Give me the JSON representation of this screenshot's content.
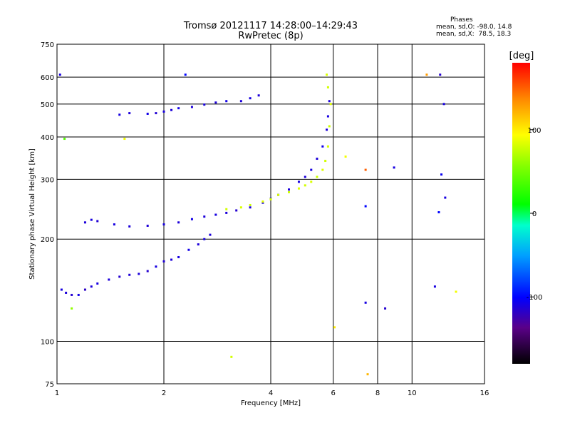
{
  "header": {
    "title": "Tromsø 20121117 14:28:00–14:29:43",
    "subtitle": "RwPretec (8p)",
    "stats_heading": "Phases",
    "stats_o": "mean, sd,O: -98.0, 14.8",
    "stats_x": "mean, sd,X:  78.5, 18.3"
  },
  "chart_data": {
    "type": "scatter",
    "title": "Tromsø 20121117 14:28:00–14:29:43",
    "subtitle": "RwPretec (8p)",
    "xlabel": "Frequency [MHz]",
    "ylabel": "Stationary phase Virtual Height [km]",
    "xscale": "log",
    "yscale": "log",
    "xlim": [
      1,
      16
    ],
    "ylim": [
      75,
      750
    ],
    "xticks": [
      1,
      2,
      4,
      6,
      8,
      10,
      16
    ],
    "xgrid": [
      2,
      4,
      6,
      8,
      10
    ],
    "yticks": [
      75,
      100,
      200,
      300,
      400,
      500,
      600,
      750
    ],
    "ygrid": [
      100,
      200,
      300,
      400,
      500,
      600
    ],
    "colorbar": {
      "label": "[deg]",
      "range": [
        -180,
        180
      ],
      "ticks": [
        100,
        0,
        -100
      ],
      "colormap": "rainbow"
    },
    "series": [
      {
        "values": [
          [
            1.03,
            142,
            -110
          ],
          [
            1.06,
            139,
            -112
          ],
          [
            1.1,
            137,
            -115
          ],
          [
            1.15,
            137,
            -108
          ],
          [
            1.2,
            142,
            -118
          ],
          [
            1.25,
            145,
            -112
          ],
          [
            1.3,
            148,
            -110
          ],
          [
            1.4,
            152,
            -112
          ],
          [
            1.5,
            155,
            -115
          ],
          [
            1.6,
            157,
            -113
          ],
          [
            1.7,
            158,
            -112
          ],
          [
            1.8,
            161,
            -115
          ],
          [
            1.9,
            166,
            -110
          ],
          [
            2.0,
            172,
            -113
          ],
          [
            2.1,
            174,
            -112
          ],
          [
            2.2,
            177,
            -110
          ],
          [
            2.35,
            186,
            -108
          ],
          [
            2.5,
            193,
            -112
          ],
          [
            2.6,
            200,
            -110
          ],
          [
            2.7,
            206,
            -112
          ]
        ]
      },
      {
        "values": [
          [
            1.2,
            224,
            -112
          ],
          [
            1.25,
            228,
            -110
          ],
          [
            1.3,
            226,
            -114
          ],
          [
            1.45,
            221,
            -110
          ],
          [
            1.6,
            218,
            -112
          ],
          [
            1.8,
            219,
            -113
          ],
          [
            2.0,
            221,
            -110
          ],
          [
            2.2,
            224,
            -112
          ],
          [
            2.4,
            229,
            -108
          ],
          [
            2.6,
            233,
            -112
          ],
          [
            2.8,
            236,
            -110
          ],
          [
            3.0,
            239,
            -112
          ],
          [
            3.2,
            243,
            -115
          ],
          [
            3.5,
            248,
            -112
          ],
          [
            3.8,
            256,
            -110
          ],
          [
            4.0,
            263,
            -112
          ],
          [
            4.2,
            270,
            -108
          ],
          [
            4.5,
            280,
            -112
          ],
          [
            4.8,
            295,
            -110
          ],
          [
            5.0,
            305,
            -112
          ],
          [
            5.2,
            320,
            -110
          ],
          [
            5.4,
            345,
            -112
          ],
          [
            5.6,
            375,
            -108
          ],
          [
            5.75,
            420,
            -112
          ],
          [
            5.8,
            460,
            -110
          ],
          [
            5.85,
            510,
            -112
          ]
        ]
      },
      {
        "values": [
          [
            3.0,
            245,
            80
          ],
          [
            3.3,
            248,
            82
          ],
          [
            3.5,
            252,
            78
          ],
          [
            3.8,
            258,
            85
          ],
          [
            4.0,
            262,
            80
          ],
          [
            4.2,
            270,
            82
          ],
          [
            4.5,
            275,
            78
          ],
          [
            4.8,
            282,
            84
          ],
          [
            5.0,
            288,
            80
          ],
          [
            5.2,
            295,
            82
          ],
          [
            5.4,
            305,
            78
          ],
          [
            5.6,
            320,
            84
          ],
          [
            5.7,
            340,
            80
          ],
          [
            5.8,
            375,
            82
          ],
          [
            5.85,
            430,
            78
          ],
          [
            5.9,
            500,
            84
          ],
          [
            5.8,
            560,
            80
          ],
          [
            5.75,
            610,
            82
          ]
        ]
      },
      {
        "values": [
          [
            1.5,
            465,
            -110
          ],
          [
            1.6,
            470,
            -112
          ],
          [
            1.8,
            468,
            -108
          ],
          [
            1.9,
            470,
            -114
          ],
          [
            2.0,
            475,
            -110
          ],
          [
            2.1,
            480,
            -112
          ],
          [
            2.2,
            486,
            -108
          ],
          [
            2.4,
            490,
            -112
          ],
          [
            2.6,
            498,
            -110
          ],
          [
            2.8,
            505,
            -112
          ],
          [
            3.0,
            510,
            -108
          ],
          [
            3.3,
            510,
            -112
          ],
          [
            3.5,
            520,
            -110
          ],
          [
            3.7,
            530,
            -112
          ]
        ]
      },
      {
        "values": [
          [
            1.1,
            125,
            60
          ],
          [
            1.05,
            395,
            40
          ],
          [
            1.55,
            395,
            90
          ],
          [
            2.3,
            610,
            -100
          ],
          [
            3.1,
            90,
            80
          ],
          [
            6.05,
            110,
            100
          ],
          [
            6.5,
            350,
            90
          ],
          [
            7.4,
            320,
            150
          ],
          [
            7.4,
            250,
            -100
          ],
          [
            7.4,
            130,
            -110
          ],
          [
            7.5,
            80,
            120
          ],
          [
            8.4,
            125,
            -115
          ],
          [
            8.9,
            325,
            -110
          ],
          [
            11.0,
            610,
            130
          ],
          [
            12.0,
            610,
            -115
          ],
          [
            12.3,
            500,
            -110
          ],
          [
            12.1,
            310,
            -105
          ],
          [
            12.4,
            265,
            -110
          ],
          [
            11.9,
            240,
            -100
          ],
          [
            11.6,
            145,
            -110
          ],
          [
            13.3,
            140,
            90
          ],
          [
            1.02,
            610,
            -110
          ]
        ]
      }
    ]
  }
}
